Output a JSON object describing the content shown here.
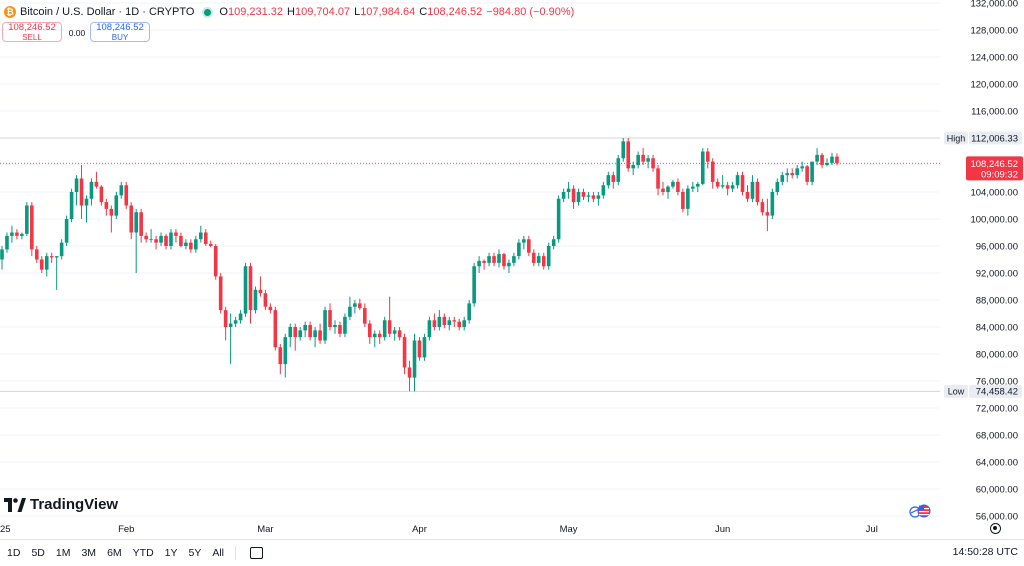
{
  "legend": {
    "title": "Bitcoin / U.S. Dollar · 1D · CRYPTO",
    "open_key": "O",
    "open": "109,231.32",
    "high_key": "H",
    "high": "109,704.07",
    "low_key": "L",
    "low": "107,984.64",
    "close_key": "C",
    "close": "108,246.52",
    "change": "−984.80 (−0.90%)"
  },
  "trade": {
    "sell_price": "108,246.52",
    "sell_label": "SELL",
    "spread": "0.00",
    "buy_price": "108,246.52",
    "buy_label": "BUY"
  },
  "brand": "TradingView",
  "ranges": [
    "1D",
    "5D",
    "1M",
    "3M",
    "6M",
    "YTD",
    "1Y",
    "5Y",
    "All"
  ],
  "clock": "14:50:28 UTC",
  "colors": {
    "up": "#089981",
    "down": "#f23645",
    "axis_text": "#131722",
    "grid": "#f0f3fa"
  },
  "chart_data": {
    "type": "candlestick",
    "title": "Bitcoin / U.S. Dollar · 1D · CRYPTO",
    "y_ticks": [
      56000,
      60000,
      64000,
      68000,
      72000,
      76000,
      80000,
      84000,
      88000,
      92000,
      96000,
      100000,
      104000,
      108000,
      112000,
      116000,
      120000,
      124000,
      128000,
      132000
    ],
    "y_tick_labels": [
      "56,000.00",
      "60,000.00",
      "64,000.00",
      "68,000.00",
      "72,000.00",
      "76,000.00",
      "80,000.00",
      "84,000.00",
      "88,000.00",
      "92,000.00",
      "96,000.00",
      "100,000.00",
      "104,000.00",
      "108,000.00",
      "112,000.00",
      "116,000.00",
      "120,000.00",
      "124,000.00",
      "128,000.00",
      "132,000.00"
    ],
    "ylim": [
      54000,
      133500
    ],
    "x_ticks": [
      {
        "label": "25",
        "day": -6
      },
      {
        "label": "Feb",
        "day": 25
      },
      {
        "label": "Mar",
        "day": 53
      },
      {
        "label": "Apr",
        "day": 84
      },
      {
        "label": "May",
        "day": 114
      },
      {
        "label": "Jun",
        "day": 145
      },
      {
        "label": "Jul",
        "day": 175
      }
    ],
    "high_marker": {
      "label": "High",
      "value": 112006.33,
      "text": "112,006.33"
    },
    "low_marker": {
      "label": "Low",
      "value": 74458.42,
      "text": "74,458.42"
    },
    "last_price": {
      "value": 108246.52,
      "text": "108,246.52",
      "countdown": "09:09:32"
    },
    "candles": [
      {
        "o": 94000,
        "h": 96000,
        "l": 92500,
        "c": 95500
      },
      {
        "o": 95500,
        "h": 98000,
        "l": 95000,
        "c": 97500
      },
      {
        "o": 97500,
        "h": 99000,
        "l": 96500,
        "c": 98000
      },
      {
        "o": 98000,
        "h": 98500,
        "l": 97000,
        "c": 97500
      },
      {
        "o": 97500,
        "h": 98000,
        "l": 97000,
        "c": 97800
      },
      {
        "o": 97800,
        "h": 102500,
        "l": 97500,
        "c": 102000
      },
      {
        "o": 102000,
        "h": 102500,
        "l": 94500,
        "c": 95500
      },
      {
        "o": 95500,
        "h": 96000,
        "l": 93500,
        "c": 94000
      },
      {
        "o": 94000,
        "h": 94500,
        "l": 92000,
        "c": 92500
      },
      {
        "o": 92500,
        "h": 95000,
        "l": 91500,
        "c": 94500
      },
      {
        "o": 94500,
        "h": 95000,
        "l": 93500,
        "c": 94300
      },
      {
        "o": 94300,
        "h": 94500,
        "l": 89500,
        "c": 94500
      },
      {
        "o": 94500,
        "h": 97000,
        "l": 94000,
        "c": 96500
      },
      {
        "o": 96500,
        "h": 100500,
        "l": 96000,
        "c": 100000
      },
      {
        "o": 100000,
        "h": 104500,
        "l": 99500,
        "c": 104000
      },
      {
        "o": 104000,
        "h": 106500,
        "l": 102000,
        "c": 106000
      },
      {
        "o": 106000,
        "h": 108000,
        "l": 100000,
        "c": 102000
      },
      {
        "o": 102000,
        "h": 103500,
        "l": 99500,
        "c": 103000
      },
      {
        "o": 103000,
        "h": 106000,
        "l": 102000,
        "c": 105500
      },
      {
        "o": 105500,
        "h": 107000,
        "l": 104500,
        "c": 104800
      },
      {
        "o": 104800,
        "h": 105000,
        "l": 102000,
        "c": 102500
      },
      {
        "o": 102500,
        "h": 103000,
        "l": 100500,
        "c": 101500
      },
      {
        "o": 101500,
        "h": 102000,
        "l": 98000,
        "c": 100500
      },
      {
        "o": 100500,
        "h": 104000,
        "l": 100000,
        "c": 103500
      },
      {
        "o": 103500,
        "h": 105500,
        "l": 103000,
        "c": 105000
      },
      {
        "o": 105000,
        "h": 105500,
        "l": 101500,
        "c": 102000
      },
      {
        "o": 102000,
        "h": 102500,
        "l": 97000,
        "c": 98000
      },
      {
        "o": 98000,
        "h": 101500,
        "l": 92000,
        "c": 101000
      },
      {
        "o": 101000,
        "h": 101500,
        "l": 96500,
        "c": 97500
      },
      {
        "o": 97500,
        "h": 98000,
        "l": 96500,
        "c": 97000
      },
      {
        "o": 97000,
        "h": 98500,
        "l": 96500,
        "c": 97000
      },
      {
        "o": 97000,
        "h": 97500,
        "l": 95500,
        "c": 96500
      },
      {
        "o": 96500,
        "h": 98000,
        "l": 96000,
        "c": 97500
      },
      {
        "o": 97500,
        "h": 97800,
        "l": 95500,
        "c": 96000
      },
      {
        "o": 96000,
        "h": 98500,
        "l": 95500,
        "c": 98000
      },
      {
        "o": 98000,
        "h": 98500,
        "l": 96500,
        "c": 97500
      },
      {
        "o": 97500,
        "h": 98000,
        "l": 95800,
        "c": 96000
      },
      {
        "o": 96000,
        "h": 97000,
        "l": 95500,
        "c": 96500
      },
      {
        "o": 96500,
        "h": 97000,
        "l": 95000,
        "c": 95500
      },
      {
        "o": 95500,
        "h": 97500,
        "l": 95000,
        "c": 97000
      },
      {
        "o": 97000,
        "h": 99000,
        "l": 96500,
        "c": 98000
      },
      {
        "o": 98000,
        "h": 98500,
        "l": 96000,
        "c": 96300
      },
      {
        "o": 96300,
        "h": 96800,
        "l": 95800,
        "c": 96000
      },
      {
        "o": 96000,
        "h": 96300,
        "l": 91000,
        "c": 91500
      },
      {
        "o": 91500,
        "h": 92000,
        "l": 86000,
        "c": 86500
      },
      {
        "o": 86500,
        "h": 87000,
        "l": 82000,
        "c": 84000
      },
      {
        "o": 84000,
        "h": 86000,
        "l": 78500,
        "c": 84500
      },
      {
        "o": 84500,
        "h": 85500,
        "l": 84000,
        "c": 85000
      },
      {
        "o": 85000,
        "h": 86500,
        "l": 84500,
        "c": 86000
      },
      {
        "o": 86000,
        "h": 93500,
        "l": 85500,
        "c": 93000
      },
      {
        "o": 93000,
        "h": 93500,
        "l": 84500,
        "c": 86500
      },
      {
        "o": 86500,
        "h": 90000,
        "l": 86000,
        "c": 89500
      },
      {
        "o": 89500,
        "h": 91500,
        "l": 88500,
        "c": 89000
      },
      {
        "o": 89000,
        "h": 89500,
        "l": 86500,
        "c": 87000
      },
      {
        "o": 87000,
        "h": 87500,
        "l": 86000,
        "c": 86500
      },
      {
        "o": 86500,
        "h": 87000,
        "l": 80500,
        "c": 81000
      },
      {
        "o": 81000,
        "h": 81500,
        "l": 77000,
        "c": 78500
      },
      {
        "o": 78500,
        "h": 83000,
        "l": 76500,
        "c": 82500
      },
      {
        "o": 82500,
        "h": 84500,
        "l": 81000,
        "c": 84000
      },
      {
        "o": 84000,
        "h": 84500,
        "l": 80500,
        "c": 82500
      },
      {
        "o": 82500,
        "h": 84000,
        "l": 82000,
        "c": 83500
      },
      {
        "o": 83500,
        "h": 84800,
        "l": 82500,
        "c": 84300
      },
      {
        "o": 84300,
        "h": 84800,
        "l": 82000,
        "c": 82500
      },
      {
        "o": 82500,
        "h": 84000,
        "l": 81000,
        "c": 83500
      },
      {
        "o": 83500,
        "h": 84500,
        "l": 81500,
        "c": 82000
      },
      {
        "o": 82000,
        "h": 87000,
        "l": 81500,
        "c": 86500
      },
      {
        "o": 86500,
        "h": 87500,
        "l": 83500,
        "c": 84000
      },
      {
        "o": 84000,
        "h": 85000,
        "l": 83000,
        "c": 84300
      },
      {
        "o": 84300,
        "h": 84800,
        "l": 82500,
        "c": 83000
      },
      {
        "o": 83000,
        "h": 86000,
        "l": 82500,
        "c": 85500
      },
      {
        "o": 85500,
        "h": 88500,
        "l": 85000,
        "c": 87000
      },
      {
        "o": 87000,
        "h": 88000,
        "l": 86000,
        "c": 87500
      },
      {
        "o": 87500,
        "h": 88200,
        "l": 86500,
        "c": 86800
      },
      {
        "o": 86800,
        "h": 87500,
        "l": 84000,
        "c": 84500
      },
      {
        "o": 84500,
        "h": 85000,
        "l": 81500,
        "c": 82500
      },
      {
        "o": 82500,
        "h": 83500,
        "l": 81000,
        "c": 83000
      },
      {
        "o": 83000,
        "h": 83500,
        "l": 81500,
        "c": 82500
      },
      {
        "o": 82500,
        "h": 85500,
        "l": 82000,
        "c": 85000
      },
      {
        "o": 85000,
        "h": 88500,
        "l": 82500,
        "c": 83000
      },
      {
        "o": 83000,
        "h": 84000,
        "l": 82000,
        "c": 83500
      },
      {
        "o": 83500,
        "h": 84000,
        "l": 82000,
        "c": 82500
      },
      {
        "o": 82500,
        "h": 83000,
        "l": 77000,
        "c": 78000
      },
      {
        "o": 78000,
        "h": 79000,
        "l": 74500,
        "c": 76500
      },
      {
        "o": 76500,
        "h": 83000,
        "l": 74458,
        "c": 82000
      },
      {
        "o": 82000,
        "h": 82500,
        "l": 79000,
        "c": 79500
      },
      {
        "o": 79500,
        "h": 83000,
        "l": 79000,
        "c": 82500
      },
      {
        "o": 82500,
        "h": 85500,
        "l": 82000,
        "c": 85000
      },
      {
        "o": 85000,
        "h": 86000,
        "l": 83500,
        "c": 84000
      },
      {
        "o": 84000,
        "h": 86500,
        "l": 83500,
        "c": 85500
      },
      {
        "o": 85500,
        "h": 86000,
        "l": 83800,
        "c": 84300
      },
      {
        "o": 84300,
        "h": 85500,
        "l": 83500,
        "c": 85000
      },
      {
        "o": 85000,
        "h": 85500,
        "l": 84000,
        "c": 84800
      },
      {
        "o": 84800,
        "h": 85200,
        "l": 83500,
        "c": 84000
      },
      {
        "o": 84000,
        "h": 85500,
        "l": 83500,
        "c": 85000
      },
      {
        "o": 85000,
        "h": 88000,
        "l": 84500,
        "c": 87500
      },
      {
        "o": 87500,
        "h": 93500,
        "l": 87000,
        "c": 93000
      },
      {
        "o": 93000,
        "h": 94500,
        "l": 92000,
        "c": 93800
      },
      {
        "o": 93800,
        "h": 94000,
        "l": 92500,
        "c": 93500
      },
      {
        "o": 93500,
        "h": 95000,
        "l": 93000,
        "c": 94500
      },
      {
        "o": 94500,
        "h": 95000,
        "l": 93000,
        "c": 93500
      },
      {
        "o": 93500,
        "h": 95500,
        "l": 92800,
        "c": 94800
      },
      {
        "o": 94800,
        "h": 95000,
        "l": 92500,
        "c": 93000
      },
      {
        "o": 93000,
        "h": 94000,
        "l": 92000,
        "c": 93500
      },
      {
        "o": 93500,
        "h": 95000,
        "l": 93000,
        "c": 94500
      },
      {
        "o": 94500,
        "h": 97000,
        "l": 94000,
        "c": 96500
      },
      {
        "o": 96500,
        "h": 97500,
        "l": 95500,
        "c": 97000
      },
      {
        "o": 97000,
        "h": 97500,
        "l": 94500,
        "c": 95000
      },
      {
        "o": 95000,
        "h": 95500,
        "l": 93000,
        "c": 93500
      },
      {
        "o": 93500,
        "h": 95000,
        "l": 93000,
        "c": 94500
      },
      {
        "o": 94500,
        "h": 95000,
        "l": 92500,
        "c": 93000
      },
      {
        "o": 93000,
        "h": 96500,
        "l": 92500,
        "c": 96000
      },
      {
        "o": 96000,
        "h": 97500,
        "l": 95500,
        "c": 97000
      },
      {
        "o": 97000,
        "h": 103500,
        "l": 96500,
        "c": 103000
      },
      {
        "o": 103000,
        "h": 104500,
        "l": 102500,
        "c": 104000
      },
      {
        "o": 104000,
        "h": 105500,
        "l": 103000,
        "c": 104500
      },
      {
        "o": 104500,
        "h": 105000,
        "l": 101500,
        "c": 102500
      },
      {
        "o": 102500,
        "h": 104500,
        "l": 102000,
        "c": 104000
      },
      {
        "o": 104000,
        "h": 104500,
        "l": 102800,
        "c": 103300
      },
      {
        "o": 103300,
        "h": 104000,
        "l": 102500,
        "c": 103500
      },
      {
        "o": 103500,
        "h": 104000,
        "l": 102500,
        "c": 103000
      },
      {
        "o": 103000,
        "h": 104000,
        "l": 102000,
        "c": 103500
      },
      {
        "o": 103500,
        "h": 105500,
        "l": 103000,
        "c": 105000
      },
      {
        "o": 105000,
        "h": 107000,
        "l": 104500,
        "c": 106500
      },
      {
        "o": 106500,
        "h": 107000,
        "l": 104500,
        "c": 105500
      },
      {
        "o": 105500,
        "h": 109500,
        "l": 105000,
        "c": 109000
      },
      {
        "o": 109000,
        "h": 112006,
        "l": 108500,
        "c": 111500
      },
      {
        "o": 111500,
        "h": 112000,
        "l": 107000,
        "c": 107500
      },
      {
        "o": 107500,
        "h": 108500,
        "l": 106500,
        "c": 108000
      },
      {
        "o": 108000,
        "h": 110000,
        "l": 107500,
        "c": 109500
      },
      {
        "o": 109500,
        "h": 110500,
        "l": 108000,
        "c": 108500
      },
      {
        "o": 108500,
        "h": 109500,
        "l": 107500,
        "c": 109000
      },
      {
        "o": 109000,
        "h": 109500,
        "l": 107000,
        "c": 107500
      },
      {
        "o": 107500,
        "h": 108000,
        "l": 103500,
        "c": 104500
      },
      {
        "o": 104500,
        "h": 105500,
        "l": 103500,
        "c": 104000
      },
      {
        "o": 104000,
        "h": 105000,
        "l": 103000,
        "c": 104800
      },
      {
        "o": 104800,
        "h": 105800,
        "l": 104500,
        "c": 105500
      },
      {
        "o": 105500,
        "h": 106000,
        "l": 103500,
        "c": 104000
      },
      {
        "o": 104000,
        "h": 104500,
        "l": 101000,
        "c": 101500
      },
      {
        "o": 101500,
        "h": 105000,
        "l": 100500,
        "c": 104500
      },
      {
        "o": 104500,
        "h": 105500,
        "l": 104000,
        "c": 104800
      },
      {
        "o": 104800,
        "h": 105500,
        "l": 104000,
        "c": 105200
      },
      {
        "o": 105200,
        "h": 110500,
        "l": 105000,
        "c": 110000
      },
      {
        "o": 110000,
        "h": 110500,
        "l": 107500,
        "c": 108500
      },
      {
        "o": 108500,
        "h": 109000,
        "l": 104500,
        "c": 105500
      },
      {
        "o": 105500,
        "h": 106000,
        "l": 104500,
        "c": 104800
      },
      {
        "o": 104800,
        "h": 106500,
        "l": 104500,
        "c": 105000
      },
      {
        "o": 105000,
        "h": 105500,
        "l": 103500,
        "c": 104500
      },
      {
        "o": 104500,
        "h": 105500,
        "l": 104000,
        "c": 105000
      },
      {
        "o": 105000,
        "h": 107000,
        "l": 104500,
        "c": 106500
      },
      {
        "o": 106500,
        "h": 107000,
        "l": 103500,
        "c": 104000
      },
      {
        "o": 104000,
        "h": 105000,
        "l": 102500,
        "c": 103000
      },
      {
        "o": 103000,
        "h": 106500,
        "l": 102500,
        "c": 105500
      },
      {
        "o": 105500,
        "h": 106000,
        "l": 102000,
        "c": 102500
      },
      {
        "o": 102500,
        "h": 103000,
        "l": 100500,
        "c": 101000
      },
      {
        "o": 101000,
        "h": 103000,
        "l": 98200,
        "c": 100500
      },
      {
        "o": 100500,
        "h": 104500,
        "l": 100000,
        "c": 104000
      },
      {
        "o": 104000,
        "h": 106000,
        "l": 103500,
        "c": 105500
      },
      {
        "o": 105500,
        "h": 107000,
        "l": 105000,
        "c": 106500
      },
      {
        "o": 106500,
        "h": 107500,
        "l": 105500,
        "c": 106800
      },
      {
        "o": 106800,
        "h": 107500,
        "l": 106000,
        "c": 106500
      },
      {
        "o": 106500,
        "h": 108000,
        "l": 106000,
        "c": 107500
      },
      {
        "o": 107500,
        "h": 108500,
        "l": 107000,
        "c": 107800
      },
      {
        "o": 107800,
        "h": 108000,
        "l": 105000,
        "c": 105500
      },
      {
        "o": 105500,
        "h": 108500,
        "l": 105000,
        "c": 108500
      },
      {
        "o": 108500,
        "h": 110500,
        "l": 108000,
        "c": 109500
      },
      {
        "o": 109500,
        "h": 109800,
        "l": 107500,
        "c": 108000
      },
      {
        "o": 108000,
        "h": 109000,
        "l": 107800,
        "c": 108300
      },
      {
        "o": 108300,
        "h": 109800,
        "l": 108000,
        "c": 109231
      },
      {
        "o": 109231,
        "h": 109704,
        "l": 107985,
        "c": 108246.52
      }
    ]
  }
}
